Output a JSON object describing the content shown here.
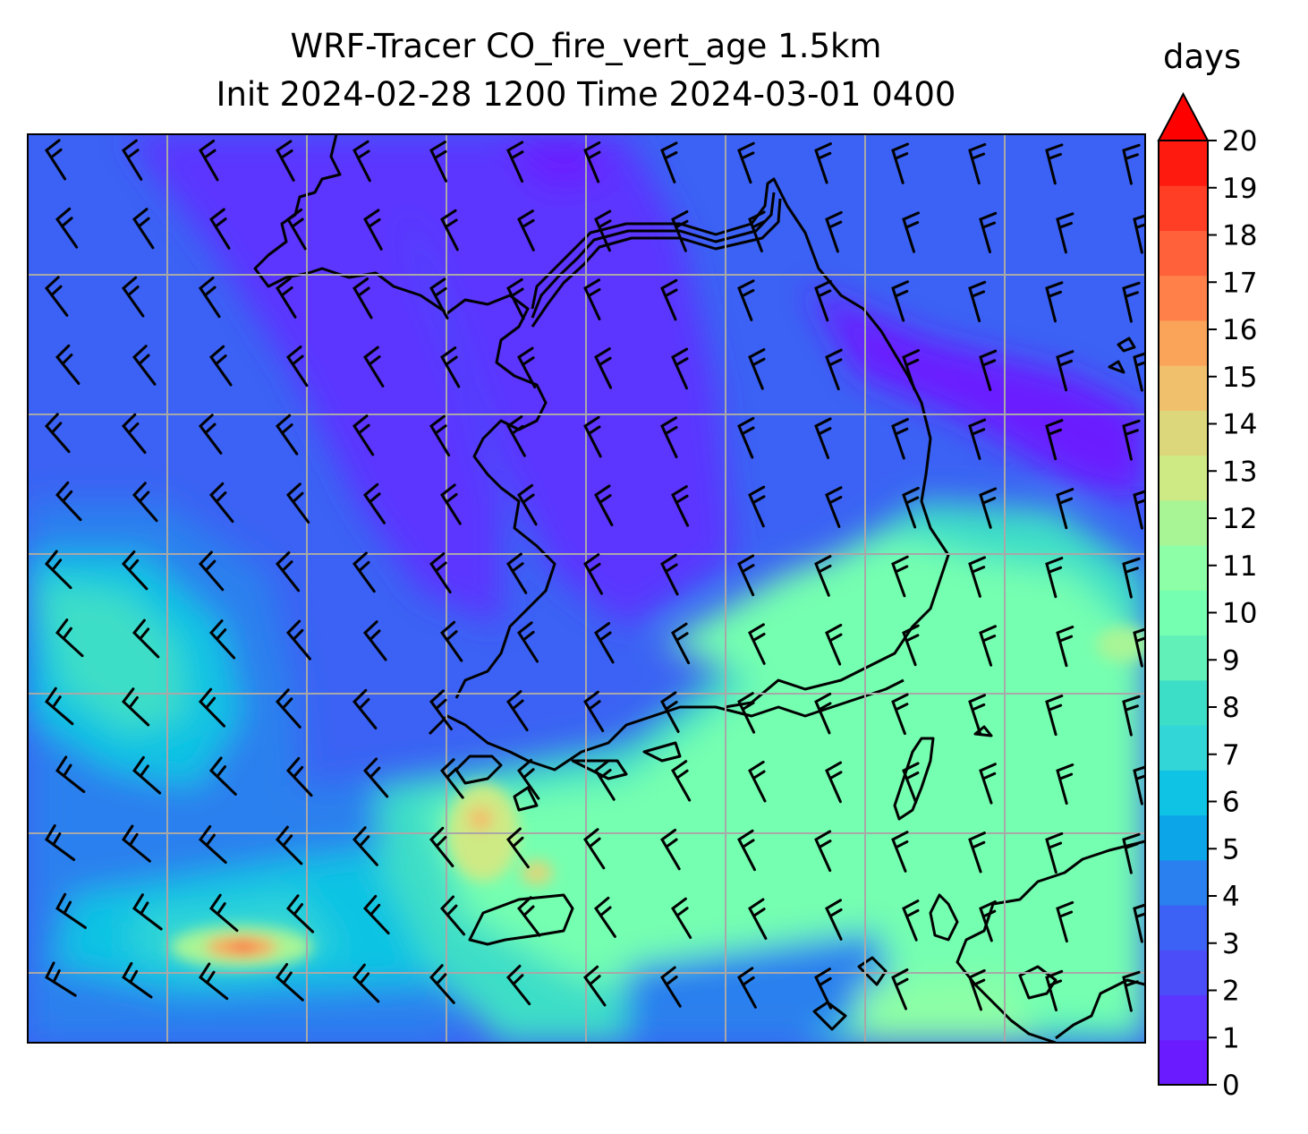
{
  "title": {
    "line1": "WRF-Tracer CO_fire_vert_age 1.5km",
    "line2": "Init 2024-02-28 1200 Time 2024-03-01 0400"
  },
  "colorbar": {
    "units": "days",
    "ticks": [
      "0",
      "1",
      "2",
      "3",
      "4",
      "5",
      "6",
      "7",
      "8",
      "9",
      "10",
      "11",
      "12",
      "13",
      "14",
      "15",
      "16",
      "17",
      "18",
      "19",
      "20"
    ],
    "colors": [
      "#6a1bff",
      "#5c35ff",
      "#4b4df8",
      "#3b62f4",
      "#2a80ee",
      "#0ca6e8",
      "#0ec3e3",
      "#33d6d6",
      "#3ddec7",
      "#60f0b8",
      "#75ffb0",
      "#8dffa6",
      "#a8f595",
      "#cdea85",
      "#dbd77a",
      "#f1c06c",
      "#faa45a",
      "#ff8048",
      "#ff613a",
      "#ff3e25",
      "#ff1a10"
    ],
    "extend": "max",
    "extend_color": "#ff0000"
  },
  "map": {
    "gridlines": true,
    "gridline_color": "#a8a8a8",
    "background_color": "#3b62f4",
    "features": [
      "coastlines",
      "wind-barbs"
    ]
  }
}
